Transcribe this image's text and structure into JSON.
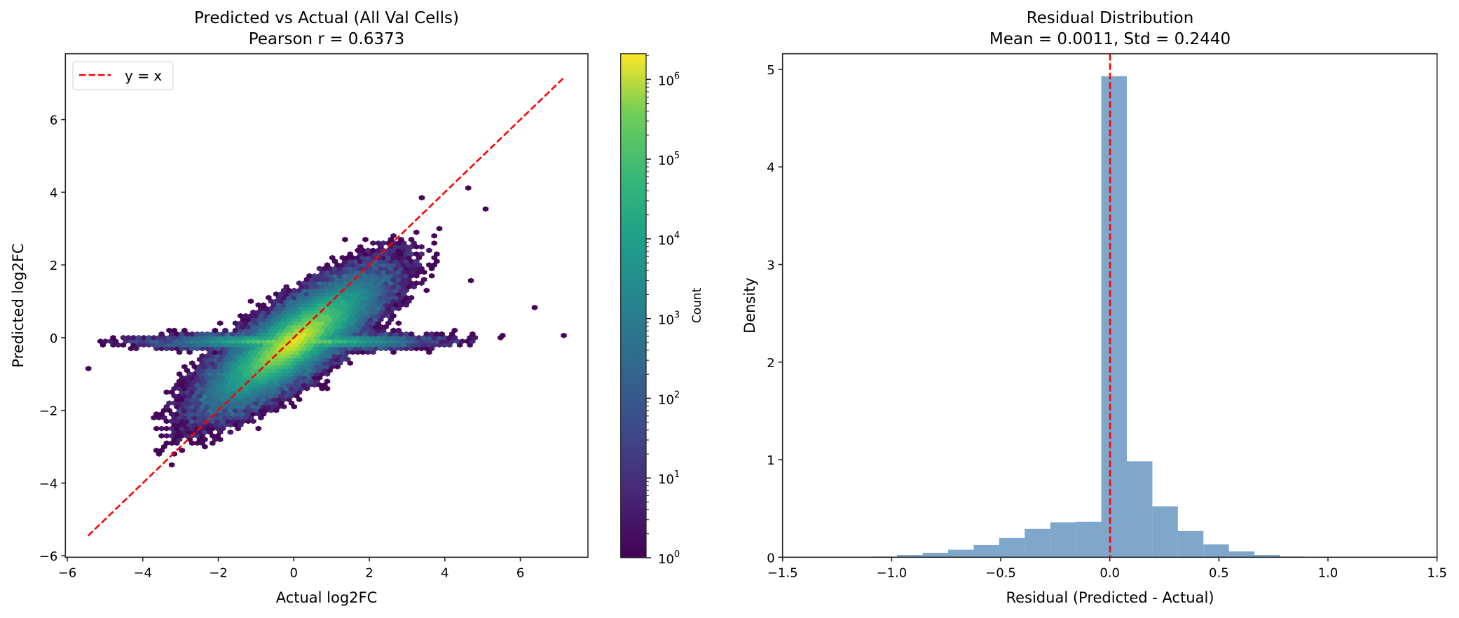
{
  "chart_data": [
    {
      "type": "hexbin",
      "title": "Predicted vs Actual (All Val Cells)",
      "subtitle": "Pearson r = 0.6373",
      "pearson_r": 0.6373,
      "xlabel": "Actual log2FC",
      "ylabel": "Predicted log2FC",
      "xlim": [
        -6.05,
        7.79
      ],
      "ylim": [
        -6.04,
        7.81
      ],
      "xticks": [
        "−6",
        "−4",
        "−2",
        "0",
        "2",
        "4",
        "6"
      ],
      "xtick_values": [
        -6,
        -4,
        -2,
        0,
        2,
        4,
        6
      ],
      "yticks": [
        "−6",
        "−4",
        "−2",
        "0",
        "2",
        "4",
        "6"
      ],
      "ytick_values": [
        -6,
        -4,
        -2,
        0,
        2,
        4,
        6
      ],
      "density_peak": {
        "x": 0.0,
        "y": -0.1
      },
      "isolated_bins": [
        [
          7.15,
          0.06
        ],
        [
          5.53,
          0.06
        ],
        [
          6.38,
          0.83
        ],
        [
          -5.44,
          -0.85
        ],
        [
          4.69,
          1.57
        ],
        [
          4.62,
          4.12
        ],
        [
          5.08,
          3.54
        ],
        [
          3.39,
          3.85
        ]
      ],
      "reference_line": {
        "label": "y = x",
        "from": -5.45,
        "to": 7.15,
        "color": "#ff0000",
        "style": "dashed"
      },
      "legend": {
        "entries": [
          "y = x"
        ],
        "position": "upper-left"
      },
      "colorbar": {
        "label": "Count",
        "scale": "log",
        "range": [
          1,
          2100000
        ],
        "ticks": [
          "10",
          "10",
          "10",
          "10",
          "10",
          "10",
          "10"
        ],
        "tick_exponents": [
          "0",
          "1",
          "2",
          "3",
          "4",
          "5",
          "6"
        ],
        "colormap": "viridis"
      },
      "grid": false
    },
    {
      "type": "histogram",
      "title": "Residual Distribution",
      "subtitle": "Mean = 0.0011, Std = 0.2440",
      "mean": 0.0011,
      "std": 0.244,
      "xlabel": "Residual (Predicted - Actual)",
      "ylabel": "Density",
      "xlim": [
        -1.5,
        1.5
      ],
      "ylim": [
        0,
        5.16
      ],
      "xticks": [
        "−1.5",
        "−1.0",
        "−0.5",
        "0.0",
        "0.5",
        "1.0",
        "1.5"
      ],
      "xtick_values": [
        -1.5,
        -1.0,
        -0.5,
        0.0,
        0.5,
        1.0,
        1.5
      ],
      "yticks": [
        "0",
        "1",
        "2",
        "3",
        "4",
        "5"
      ],
      "ytick_values": [
        0,
        1,
        2,
        3,
        4,
        5
      ],
      "bin_edges": [
        -1.092,
        -0.975,
        -0.858,
        -0.741,
        -0.624,
        -0.507,
        -0.39,
        -0.273,
        -0.156,
        -0.039,
        0.078,
        0.195,
        0.312,
        0.429,
        0.546,
        0.663,
        0.78,
        0.897
      ],
      "values": [
        0.007,
        0.024,
        0.046,
        0.077,
        0.125,
        0.197,
        0.291,
        0.358,
        0.363,
        4.93,
        0.983,
        0.522,
        0.269,
        0.132,
        0.06,
        0.024,
        0.007
      ],
      "bar_color": "#7ea7cb",
      "mean_line": {
        "x": 0.0011,
        "color": "#ff0000",
        "style": "dashed"
      },
      "grid": false
    }
  ]
}
